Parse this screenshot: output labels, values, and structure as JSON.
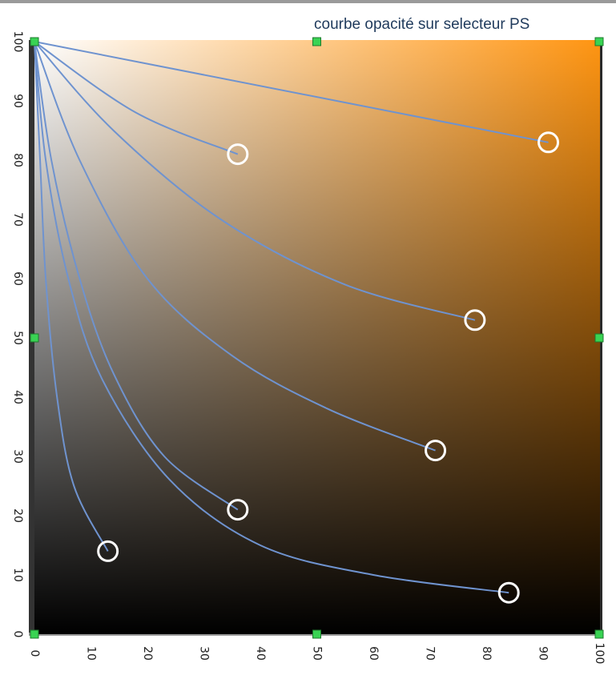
{
  "chart_data": {
    "type": "line",
    "title": "courbe opacité sur selecteur PS",
    "xlabel": "",
    "ylabel": "",
    "xlim": [
      0,
      100
    ],
    "ylim": [
      0,
      100
    ],
    "x_ticks": [
      "0",
      "10",
      "20",
      "30",
      "40",
      "50",
      "60",
      "70",
      "80",
      "90",
      "100"
    ],
    "y_ticks": [
      "0",
      "10",
      "20",
      "30",
      "40",
      "50",
      "60",
      "70",
      "80",
      "90",
      "100"
    ],
    "gradient_colors": {
      "top_left": "#ffffff",
      "top_right": "#ff9512",
      "bottom_left": "#000000",
      "bottom_right": "#000000"
    },
    "curve_color": "#6f93cf",
    "marker_color": "#ffffff",
    "handle_color": "#39d353",
    "handles": [
      {
        "x": 0,
        "y": 100
      },
      {
        "x": 50,
        "y": 100
      },
      {
        "x": 100,
        "y": 100
      },
      {
        "x": 0,
        "y": 50
      },
      {
        "x": 100,
        "y": 50
      },
      {
        "x": 0,
        "y": 0
      },
      {
        "x": 50,
        "y": 0
      },
      {
        "x": 100,
        "y": 0
      }
    ],
    "series": [
      {
        "points": [
          [
            0,
            100
          ],
          [
            91,
            83
          ]
        ],
        "end": [
          91,
          83
        ]
      },
      {
        "points": [
          [
            0,
            100
          ],
          [
            18,
            88
          ],
          [
            36,
            81
          ]
        ],
        "end": [
          36,
          81
        ]
      },
      {
        "points": [
          [
            0,
            100
          ],
          [
            14,
            85
          ],
          [
            33,
            70
          ],
          [
            55,
            59
          ],
          [
            78,
            53
          ]
        ],
        "end": [
          78,
          53
        ]
      },
      {
        "points": [
          [
            0,
            100
          ],
          [
            8,
            80
          ],
          [
            20,
            60
          ],
          [
            35,
            47
          ],
          [
            52,
            38
          ],
          [
            71,
            31
          ]
        ],
        "end": [
          71,
          31
        ]
      },
      {
        "points": [
          [
            0,
            100
          ],
          [
            3,
            80
          ],
          [
            8,
            60
          ],
          [
            14,
            44
          ],
          [
            23,
            30
          ],
          [
            36,
            21
          ]
        ],
        "end": [
          36,
          21
        ]
      },
      {
        "points": [
          [
            0,
            100
          ],
          [
            2,
            80
          ],
          [
            6,
            60
          ],
          [
            12,
            43
          ],
          [
            24,
            26
          ],
          [
            40,
            15
          ],
          [
            60,
            10
          ],
          [
            84,
            7
          ]
        ],
        "end": [
          84,
          7
        ]
      },
      {
        "points": [
          [
            0,
            100
          ],
          [
            1,
            80
          ],
          [
            2,
            60
          ],
          [
            4,
            40
          ],
          [
            7,
            25
          ],
          [
            13,
            14
          ]
        ],
        "end": [
          13,
          14
        ]
      }
    ]
  }
}
